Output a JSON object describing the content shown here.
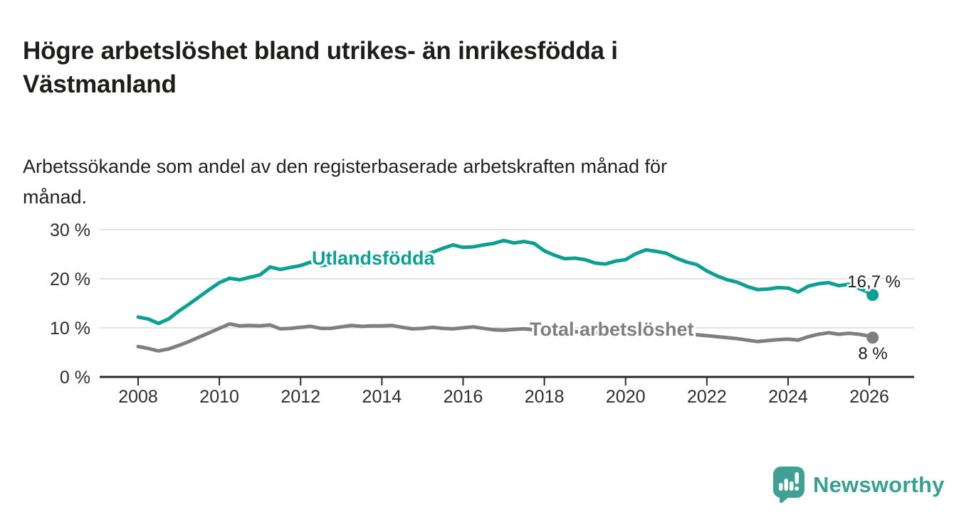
{
  "header": {
    "title": "Högre arbetslöshet bland utrikes- än inrikesfödda i Västmanland",
    "title_lines": [
      "Högre arbetslöshet bland utrikes- än inrikesfödda i",
      "Västmanland"
    ],
    "subtitle": "Arbetssökande som andel av den registerbaserade arbetskraften månad för månad.",
    "subtitle_lines": [
      "Arbetssökande som andel av den registerbaserade arbetskraften månad för",
      "månad."
    ]
  },
  "chart_data": {
    "type": "line",
    "title": "Högre arbetslöshet bland utrikes- än inrikesfödda i Västmanland",
    "xlabel": "",
    "ylabel": "",
    "grid": "horizontal",
    "ylim": [
      0,
      30
    ],
    "xlim": [
      2007.05,
      2027.1
    ],
    "x_ticks": {
      "values": [
        2008,
        2010,
        2012,
        2014,
        2016,
        2018,
        2020,
        2022,
        2024,
        2026
      ],
      "labels": [
        "2008",
        "2010",
        "2012",
        "2014",
        "2016",
        "2018",
        "2020",
        "2022",
        "2024",
        "2026"
      ]
    },
    "y_ticks": {
      "values": [
        0,
        10,
        20,
        30
      ],
      "labels": [
        "0 %",
        "10 %",
        "20 %",
        "30 %"
      ]
    },
    "x": [
      2008.0,
      2008.25,
      2008.5,
      2008.75,
      2009.0,
      2009.25,
      2009.5,
      2009.75,
      2010.0,
      2010.25,
      2010.5,
      2010.75,
      2011.0,
      2011.25,
      2011.5,
      2011.75,
      2012.0,
      2012.25,
      2012.5,
      2012.75,
      2013.0,
      2013.25,
      2013.5,
      2013.75,
      2014.0,
      2014.25,
      2014.5,
      2014.75,
      2015.0,
      2015.25,
      2015.5,
      2015.75,
      2016.0,
      2016.25,
      2016.5,
      2016.75,
      2017.0,
      2017.25,
      2017.5,
      2017.75,
      2018.0,
      2018.25,
      2018.5,
      2018.75,
      2019.0,
      2019.25,
      2019.5,
      2019.75,
      2020.0,
      2020.25,
      2020.5,
      2020.75,
      2021.0,
      2021.25,
      2021.5,
      2021.75,
      2022.0,
      2022.25,
      2022.5,
      2022.75,
      2023.0,
      2023.25,
      2023.5,
      2023.75,
      2024.0,
      2024.25,
      2024.5,
      2024.75,
      2025.0,
      2025.25,
      2025.5,
      2025.75,
      2026.0,
      2026.08
    ],
    "series": [
      {
        "name": "Utlandsfödda",
        "color": "#0d9e94",
        "end_label": "16,7 %",
        "end_value": 16.7,
        "values": [
          12.2,
          11.8,
          10.9,
          11.8,
          13.4,
          14.8,
          16.3,
          17.8,
          19.2,
          20.1,
          19.8,
          20.3,
          20.8,
          22.4,
          21.9,
          22.3,
          22.7,
          23.4,
          22.7,
          22.9,
          23.1,
          23.0,
          22.8,
          23.0,
          23.1,
          23.4,
          23.6,
          24.1,
          24.7,
          25.4,
          26.2,
          26.9,
          26.4,
          26.5,
          26.9,
          27.2,
          27.8,
          27.3,
          27.6,
          27.2,
          25.7,
          24.8,
          24.1,
          24.2,
          23.9,
          23.2,
          23.0,
          23.6,
          23.9,
          25.1,
          25.9,
          25.6,
          25.2,
          24.2,
          23.4,
          22.9,
          21.6,
          20.6,
          19.8,
          19.3,
          18.4,
          17.8,
          17.9,
          18.2,
          18.1,
          17.3,
          18.5,
          19.0,
          19.2,
          18.6,
          18.9,
          18.0,
          17.2,
          16.7
        ]
      },
      {
        "name": "Total arbetslöshet",
        "color": "#7f7f7f",
        "end_label": "8 %",
        "end_value": 8.0,
        "values": [
          6.2,
          5.8,
          5.3,
          5.7,
          6.4,
          7.2,
          8.1,
          9.0,
          9.9,
          10.8,
          10.4,
          10.5,
          10.4,
          10.6,
          9.8,
          9.9,
          10.1,
          10.3,
          9.9,
          9.9,
          10.2,
          10.5,
          10.3,
          10.4,
          10.4,
          10.5,
          10.1,
          9.8,
          9.9,
          10.1,
          9.9,
          9.8,
          10.0,
          10.2,
          9.9,
          9.6,
          9.5,
          9.7,
          9.8,
          9.6,
          9.4,
          9.5,
          9.3,
          9.2,
          9.1,
          9.0,
          8.9,
          9.0,
          9.1,
          9.6,
          9.9,
          9.7,
          9.4,
          9.1,
          8.8,
          8.6,
          8.4,
          8.2,
          8.0,
          7.8,
          7.5,
          7.2,
          7.4,
          7.6,
          7.7,
          7.5,
          8.2,
          8.7,
          9.0,
          8.7,
          8.9,
          8.7,
          8.3,
          8.0
        ]
      }
    ],
    "colors": {
      "axis": "#2b2b2b",
      "grid": "#d9d9d9",
      "tick_text": "#2e2e2e",
      "value_text": "#1d1d1b"
    }
  },
  "footer": {
    "brand": "Newsworthy",
    "logo_icon": "bar-chart-speech-bubble"
  }
}
